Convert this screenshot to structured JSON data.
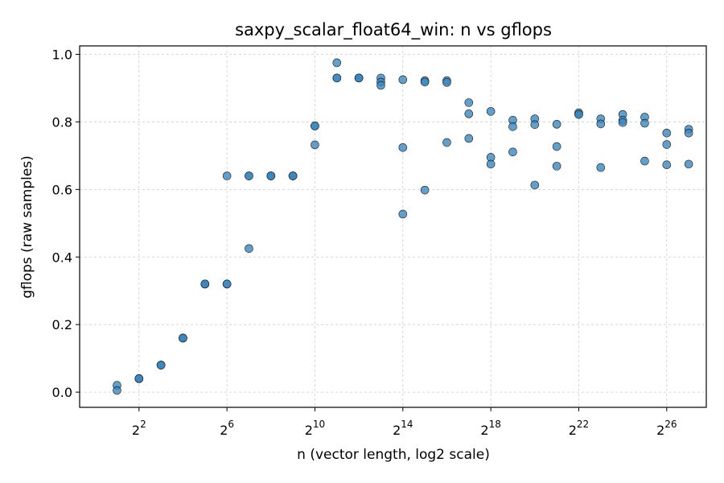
{
  "chart_data": {
    "type": "scatter",
    "title": "saxpy_scalar_float64_win: n vs gflops",
    "xlabel": "n (vector length, log2 scale)",
    "ylabel": "gflops (raw samples)",
    "x_scale": "log2",
    "xlim_log2": [
      -0.7,
      27.8
    ],
    "ylim": [
      -0.045,
      1.025
    ],
    "x_ticks": [
      {
        "base": "2",
        "exp": "2",
        "log2": 2
      },
      {
        "base": "2",
        "exp": "6",
        "log2": 6
      },
      {
        "base": "2",
        "exp": "10",
        "log2": 10
      },
      {
        "base": "2",
        "exp": "14",
        "log2": 14
      },
      {
        "base": "2",
        "exp": "18",
        "log2": 18
      },
      {
        "base": "2",
        "exp": "22",
        "log2": 22
      },
      {
        "base": "2",
        "exp": "26",
        "log2": 26
      }
    ],
    "y_ticks": [
      {
        "label": "0.0",
        "value": 0.0
      },
      {
        "label": "0.2",
        "value": 0.2
      },
      {
        "label": "0.4",
        "value": 0.4
      },
      {
        "label": "0.6",
        "value": 0.6
      },
      {
        "label": "0.8",
        "value": 0.8
      },
      {
        "label": "1.0",
        "value": 1.0
      }
    ],
    "grid": true,
    "marker_color": "#3a87c0",
    "points": [
      [
        1,
        0.02
      ],
      [
        1,
        0.005
      ],
      [
        2,
        0.04
      ],
      [
        2,
        0.04
      ],
      [
        2,
        0.04
      ],
      [
        3,
        0.08
      ],
      [
        3,
        0.08
      ],
      [
        3,
        0.08
      ],
      [
        4,
        0.16
      ],
      [
        4,
        0.16
      ],
      [
        4,
        0.16
      ],
      [
        5,
        0.32
      ],
      [
        5,
        0.32
      ],
      [
        5,
        0.32
      ],
      [
        6,
        0.32
      ],
      [
        6,
        0.32
      ],
      [
        6,
        0.64
      ],
      [
        7,
        0.64
      ],
      [
        7,
        0.64
      ],
      [
        7,
        0.425
      ],
      [
        8,
        0.64
      ],
      [
        8,
        0.64
      ],
      [
        8,
        0.64
      ],
      [
        9,
        0.64
      ],
      [
        9,
        0.64
      ],
      [
        9,
        0.64
      ],
      [
        10,
        0.788
      ],
      [
        10,
        0.788
      ],
      [
        10,
        0.732
      ],
      [
        11,
        0.93
      ],
      [
        11,
        0.93
      ],
      [
        11,
        0.975
      ],
      [
        12,
        0.93
      ],
      [
        12,
        0.93
      ],
      [
        12,
        0.93
      ],
      [
        13,
        0.93
      ],
      [
        13,
        0.918
      ],
      [
        13,
        0.908
      ],
      [
        14,
        0.925
      ],
      [
        14,
        0.724
      ],
      [
        14,
        0.527
      ],
      [
        15,
        0.922
      ],
      [
        15,
        0.918
      ],
      [
        15,
        0.598
      ],
      [
        16,
        0.922
      ],
      [
        16,
        0.917
      ],
      [
        16,
        0.739
      ],
      [
        17,
        0.857
      ],
      [
        17,
        0.824
      ],
      [
        17,
        0.751
      ],
      [
        18,
        0.831
      ],
      [
        18,
        0.695
      ],
      [
        18,
        0.675
      ],
      [
        19,
        0.805
      ],
      [
        19,
        0.786
      ],
      [
        19,
        0.711
      ],
      [
        20,
        0.809
      ],
      [
        20,
        0.792
      ],
      [
        20,
        0.613
      ],
      [
        21,
        0.793
      ],
      [
        21,
        0.727
      ],
      [
        21,
        0.669
      ],
      [
        22,
        0.827
      ],
      [
        22,
        0.822
      ],
      [
        22,
        0.822
      ],
      [
        23,
        0.809
      ],
      [
        23,
        0.794
      ],
      [
        23,
        0.665
      ],
      [
        24,
        0.822
      ],
      [
        24,
        0.805
      ],
      [
        24,
        0.798
      ],
      [
        25,
        0.814
      ],
      [
        25,
        0.796
      ],
      [
        25,
        0.684
      ],
      [
        26,
        0.767
      ],
      [
        26,
        0.733
      ],
      [
        26,
        0.673
      ],
      [
        27,
        0.778
      ],
      [
        27,
        0.767
      ],
      [
        27,
        0.675
      ]
    ]
  }
}
